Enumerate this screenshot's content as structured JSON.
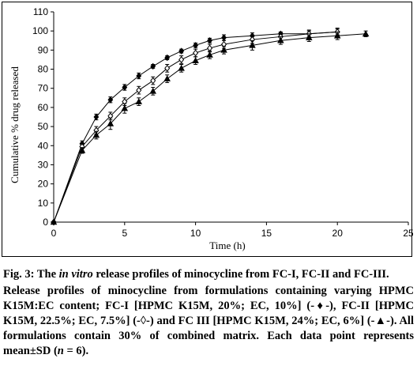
{
  "chart_data": {
    "type": "line",
    "title": "",
    "xlabel": "Time (h)",
    "ylabel": "Cumulative % drug released",
    "xlim": [
      0,
      25
    ],
    "ylim": [
      0,
      110
    ],
    "xticks": [
      "0",
      "5",
      "10",
      "15",
      "20",
      "25"
    ],
    "yticks": [
      "0",
      "10",
      "20",
      "30",
      "40",
      "50",
      "60",
      "70",
      "80",
      "90",
      "100",
      "110"
    ],
    "grid": false,
    "series": [
      {
        "name": "FC-I",
        "marker": "filled-diamond",
        "x": [
          0,
          2,
          3,
          4,
          5,
          6,
          7,
          8,
          9,
          10,
          11,
          12,
          14,
          16,
          18,
          20
        ],
        "y": [
          0,
          41,
          55,
          64,
          70.5,
          76.5,
          81.5,
          86,
          89.5,
          92.5,
          95,
          96.5,
          97.5,
          98.5,
          98.5,
          99.5
        ],
        "err": [
          0,
          1.5,
          1.5,
          1.5,
          1.5,
          1.5,
          1,
          1,
          1,
          1.2,
          1.2,
          1.5,
          1.5,
          1,
          1.5,
          1.5
        ]
      },
      {
        "name": "FC-II",
        "marker": "open-diamond",
        "x": [
          0,
          2,
          3,
          4,
          5,
          6,
          7,
          8,
          9,
          10,
          11,
          12,
          14,
          16,
          18,
          20
        ],
        "y": [
          0,
          39.5,
          48,
          55.5,
          63,
          69,
          74,
          80.5,
          85,
          88.5,
          91,
          93,
          95.5,
          97,
          98.5,
          99.5
        ],
        "err": [
          0,
          2,
          2,
          2,
          2,
          2,
          2,
          2,
          2,
          2,
          2,
          2,
          2,
          2,
          2,
          2
        ]
      },
      {
        "name": "FC-III",
        "marker": "filled-triangle",
        "x": [
          0,
          2,
          3,
          4,
          5,
          6,
          7,
          8,
          9,
          10,
          11,
          12,
          14,
          16,
          18,
          20,
          22
        ],
        "y": [
          0,
          37.5,
          45.5,
          51.5,
          59.5,
          63,
          68.5,
          75,
          80.5,
          84.5,
          87.5,
          90,
          92.5,
          95,
          96.5,
          97.5,
          98.5
        ],
        "err": [
          0,
          1.5,
          2,
          3,
          2.5,
          2,
          2,
          2,
          2,
          2,
          2,
          2,
          2.5,
          2,
          2,
          2,
          1.5
        ]
      }
    ]
  },
  "caption": {
    "fig_label": "Fig. 3: The ",
    "fig_italic": "in vitro",
    "fig_rest": " release profiles of minocycline from FC-I, FC-II and FC-III.",
    "desc_1": "Release profiles of minocycline from formulations containing varying HPMC K15M:EC content; FC-I [HPMC K15M, 20%; EC, 10%] (-♦-), FC-II [HPMC K15M, 22.5%; EC, 7.5%] (-◊-) and FC III [HPMC K15M, 24%; EC, 6%] (-▲-). All formulations contain 30% of combined matrix. Each data point represents mean±SD (",
    "desc_n": "n",
    "desc_2": " = 6)."
  }
}
